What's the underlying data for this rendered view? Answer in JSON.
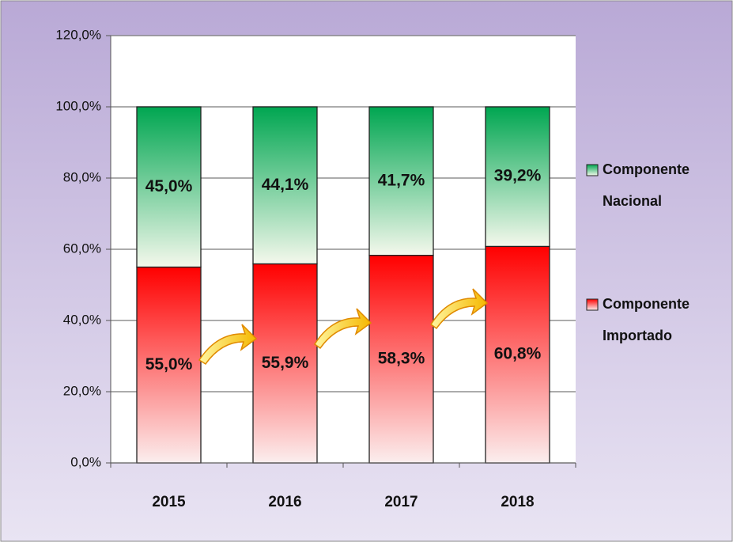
{
  "chart_data": {
    "type": "stacked_bar",
    "categories": [
      "2015",
      "2016",
      "2017",
      "2018"
    ],
    "series": [
      {
        "name": "Componente Importado",
        "color": "#ff0000",
        "values": [
          55.0,
          55.9,
          58.3,
          60.8
        ],
        "value_labels": [
          "55,0%",
          "55,9%",
          "58,3%",
          "60,8%"
        ]
      },
      {
        "name": "Componente Nacional",
        "color": "#00a651",
        "values": [
          45.0,
          44.1,
          41.7,
          39.2
        ],
        "value_labels": [
          "45,0%",
          "44,1%",
          "41,7%",
          "39,2%"
        ]
      }
    ],
    "ylim": [
      0,
      120
    ],
    "yticks": [
      {
        "value": 0,
        "label": "0,0%"
      },
      {
        "value": 20,
        "label": "20,0%"
      },
      {
        "value": 40,
        "label": "40,0%"
      },
      {
        "value": 60,
        "label": "60,0%"
      },
      {
        "value": 80,
        "label": "80,0%"
      },
      {
        "value": 100,
        "label": "100,0%"
      },
      {
        "value": 120,
        "label": "120,0%"
      }
    ],
    "grid": true,
    "legend": "right"
  }
}
